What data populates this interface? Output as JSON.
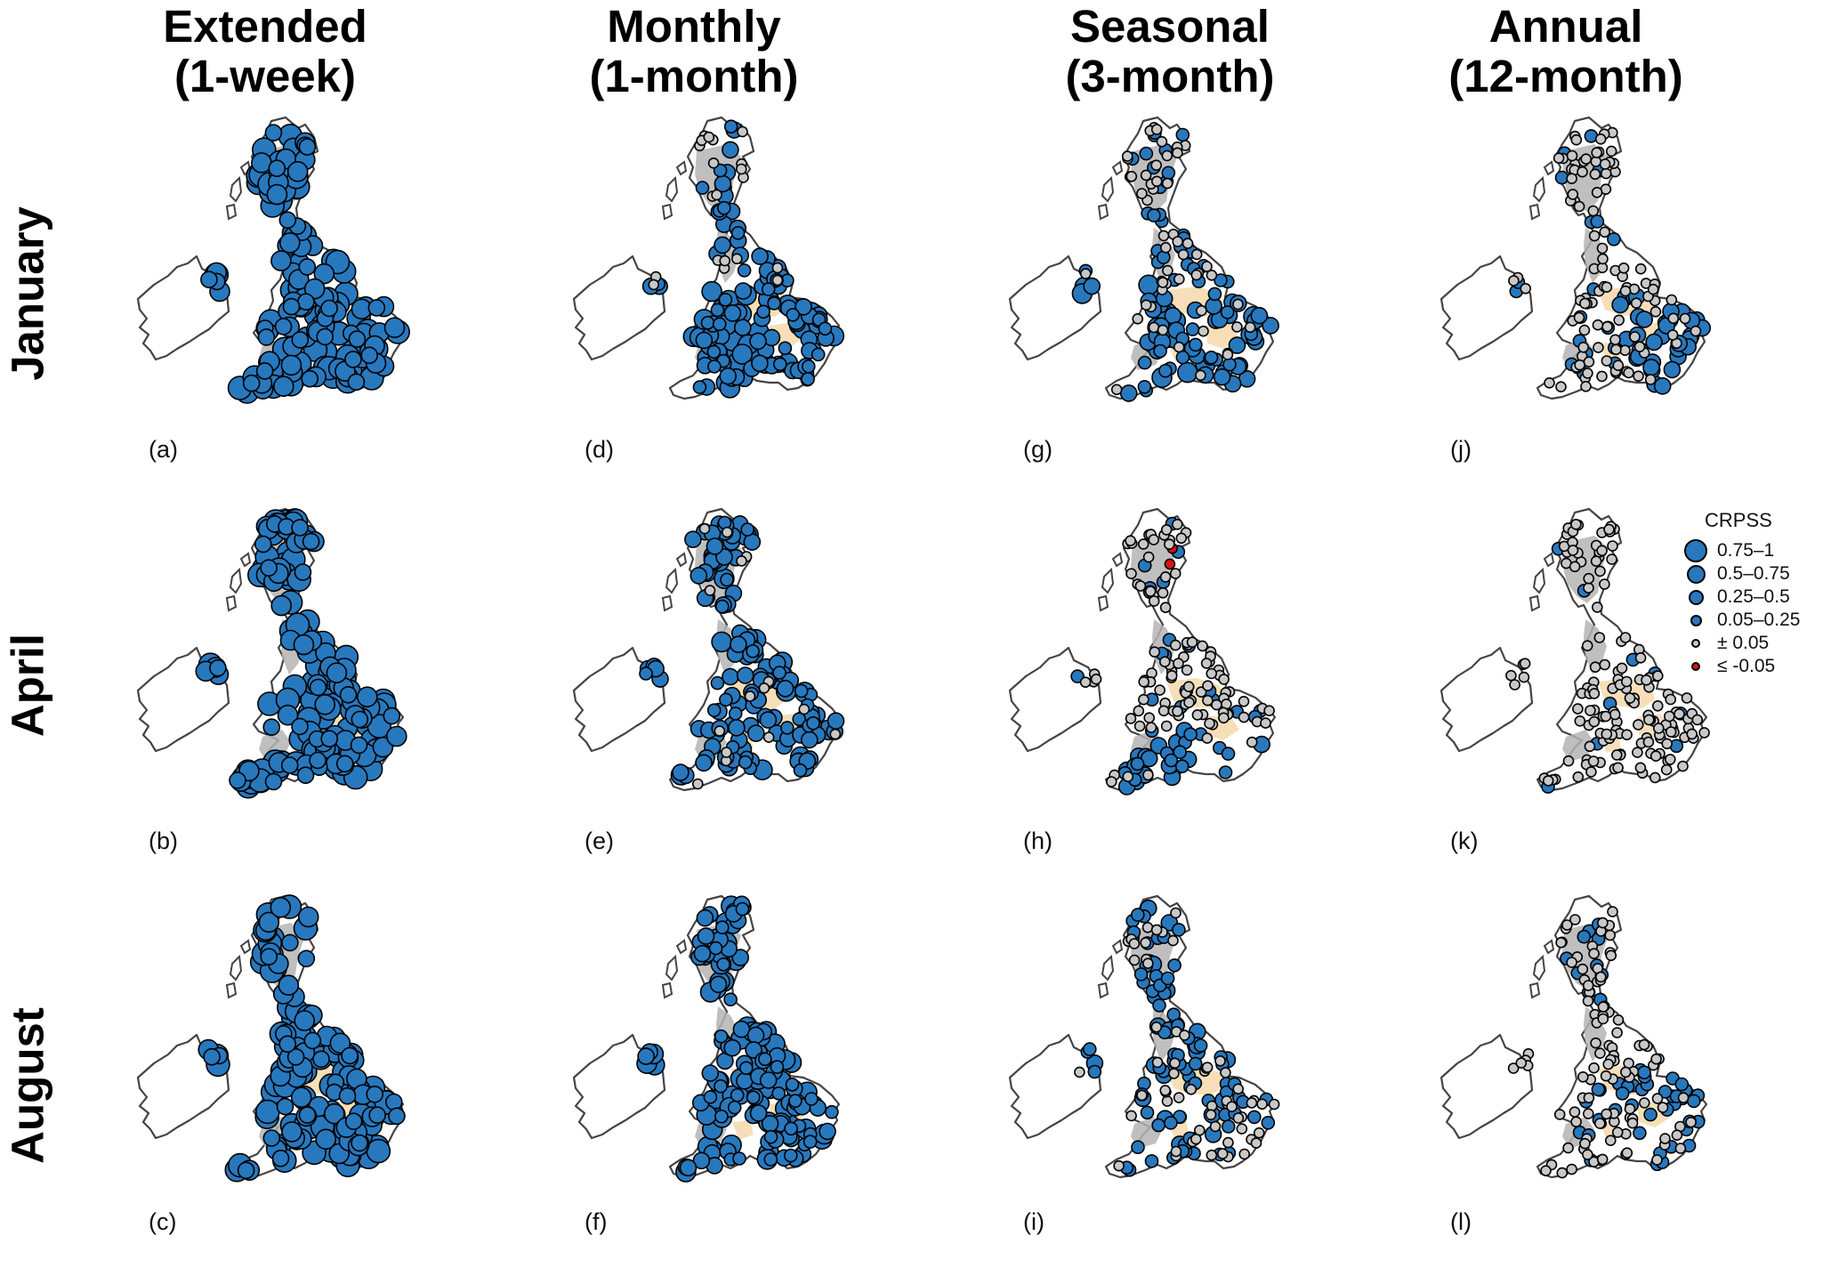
{
  "columns": [
    {
      "line1": "Extended",
      "line2": "(1-week)"
    },
    {
      "line1": "Monthly",
      "line2": "(1-month)"
    },
    {
      "line1": "Seasonal",
      "line2": "(3-month)"
    },
    {
      "line1": "Annual",
      "line2": "(12-month)"
    }
  ],
  "rows": [
    "January",
    "April",
    "August"
  ],
  "panels": [
    {
      "label": "(a)",
      "month": "January",
      "horizon": "Extended (1-week)",
      "dominant_class": "0.75–1 / 0.5–0.75"
    },
    {
      "label": "(b)",
      "month": "April",
      "horizon": "Extended (1-week)",
      "dominant_class": "0.75–1 / 0.5–0.75"
    },
    {
      "label": "(c)",
      "month": "August",
      "horizon": "Extended (1-week)",
      "dominant_class": "0.75–1 / 0.5–0.75"
    },
    {
      "label": "(d)",
      "month": "January",
      "horizon": "Monthly (1-month)",
      "dominant_class": "0.25–0.5 / 0.5–0.75"
    },
    {
      "label": "(e)",
      "month": "April",
      "horizon": "Monthly (1-month)",
      "dominant_class": "0.25–0.5"
    },
    {
      "label": "(f)",
      "month": "August",
      "horizon": "Monthly (1-month)",
      "dominant_class": "0.25–0.5 / 0.5–0.75"
    },
    {
      "label": "(g)",
      "month": "January",
      "horizon": "Seasonal (3-month)",
      "dominant_class": "0.25–0.5 south, ± 0.05 north"
    },
    {
      "label": "(h)",
      "month": "April",
      "horizon": "Seasonal (3-month)",
      "dominant_class": "± 0.05 mostly, ≤ -0.05 in north-east Scotland"
    },
    {
      "label": "(i)",
      "month": "August",
      "horizon": "Seasonal (3-month)",
      "dominant_class": "0.05–0.25 / ± 0.05 mixed"
    },
    {
      "label": "(j)",
      "month": "January",
      "horizon": "Annual (12-month)",
      "dominant_class": "± 0.05 north, 0.05–0.25 south-east"
    },
    {
      "label": "(k)",
      "month": "April",
      "horizon": "Annual (12-month)",
      "dominant_class": "± 0.05"
    },
    {
      "label": "(l)",
      "month": "August",
      "horizon": "Annual (12-month)",
      "dominant_class": "± 0.05 / 0.05–0.25 mixed"
    }
  ],
  "legend": {
    "title": "CRPSS",
    "items": [
      {
        "label": "0.75–1",
        "color": "#2878be",
        "size": 5
      },
      {
        "label": "0.5–0.75",
        "color": "#2878be",
        "size": 4
      },
      {
        "label": "0.25–0.5",
        "color": "#2878be",
        "size": 3
      },
      {
        "label": "0.05–0.25",
        "color": "#2878be",
        "size": 2
      },
      {
        "label": "± 0.05",
        "color": "#c8c8c8",
        "size": 1
      },
      {
        "label": "≤ -0.05",
        "color": "#dd1111",
        "size": 1
      }
    ]
  },
  "colors": {
    "skill_blue": "#2878be",
    "neutral_grey": "#c8c8c8",
    "negative_red": "#dd1111",
    "upland_grey": "#b4b4b4",
    "lowland_tan": "#f5dcb0",
    "coastline": "#444444"
  }
}
